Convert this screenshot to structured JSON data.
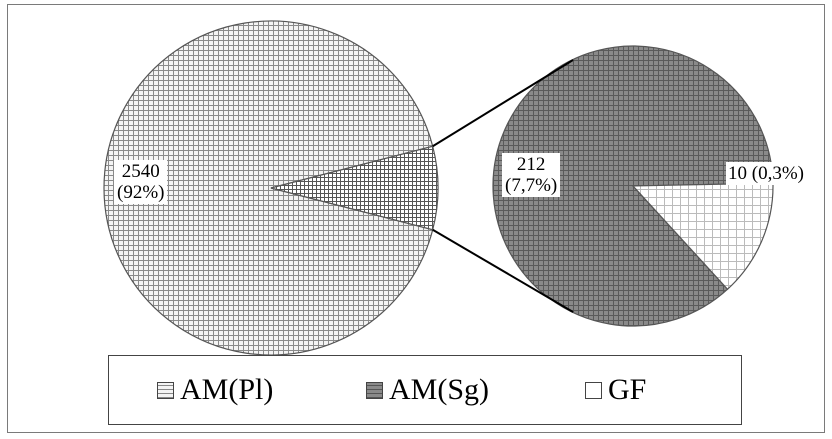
{
  "chart_data": {
    "type": "pie",
    "subtype": "pie-of-pie",
    "series": [
      {
        "name": "AM(Pl)",
        "value": 2540,
        "label": "2540\n(92%)",
        "pie": "main"
      },
      {
        "name": "AM(Sg)",
        "value": 212,
        "label": "212\n(7,7%)",
        "pie": "secondary"
      },
      {
        "name": "GF",
        "value": 10,
        "label": "10 (0,3%)",
        "pie": "secondary"
      }
    ],
    "legend_position": "bottom",
    "colors": {
      "am_pl": "#a8a8a8",
      "am_sg": "#777777",
      "gf": "#ffffff",
      "secondary_group": "#9a9a9a",
      "outline": "#555555",
      "connector": "#000000"
    }
  },
  "legend": {
    "items": [
      {
        "name": "AM(Pl)",
        "icon": "grid-light-swatch-icon"
      },
      {
        "name": "AM(Sg)",
        "icon": "grid-dark-swatch-icon"
      },
      {
        "name": "GF",
        "icon": "white-swatch-icon"
      }
    ]
  }
}
